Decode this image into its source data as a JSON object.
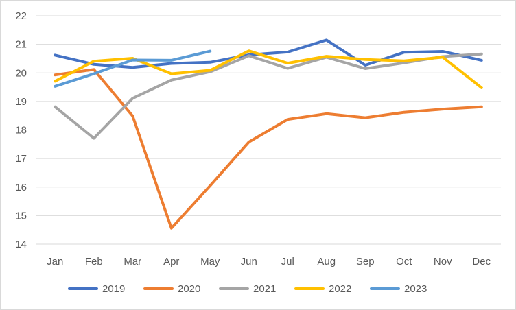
{
  "chart_data": {
    "type": "line",
    "title": "",
    "xlabel": "",
    "ylabel": "",
    "categories": [
      "Jan",
      "Feb",
      "Mar",
      "Apr",
      "May",
      "Jun",
      "Jul",
      "Aug",
      "Sep",
      "Oct",
      "Nov",
      "Dec"
    ],
    "ylim": [
      14,
      22
    ],
    "yticks": [
      14,
      15,
      16,
      17,
      18,
      19,
      20,
      21,
      22
    ],
    "grid": "horizontal",
    "legend_position": "bottom",
    "series": [
      {
        "name": "2019",
        "color": "#4472C4",
        "values": [
          20.62,
          20.3,
          20.19,
          20.33,
          20.37,
          20.63,
          20.73,
          21.15,
          20.27,
          20.72,
          20.75,
          20.44
        ]
      },
      {
        "name": "2020",
        "color": "#ED7D31",
        "values": [
          19.93,
          20.12,
          18.49,
          14.56,
          16.05,
          17.58,
          18.37,
          18.57,
          18.43,
          18.62,
          18.73,
          18.81
        ]
      },
      {
        "name": "2021",
        "color": "#A5A5A5",
        "values": [
          18.81,
          17.71,
          19.11,
          19.75,
          20.04,
          20.6,
          20.16,
          20.55,
          20.15,
          20.35,
          20.57,
          20.66
        ]
      },
      {
        "name": "2022",
        "color": "#FFC000",
        "values": [
          19.71,
          20.41,
          20.51,
          19.97,
          20.09,
          20.77,
          20.34,
          20.58,
          20.47,
          20.42,
          20.55,
          19.48
        ]
      },
      {
        "name": "2023",
        "color": "#5B9BD5",
        "values": [
          19.53,
          19.97,
          20.45,
          20.44,
          20.76,
          null,
          null,
          null,
          null,
          null,
          null,
          null
        ]
      }
    ]
  }
}
